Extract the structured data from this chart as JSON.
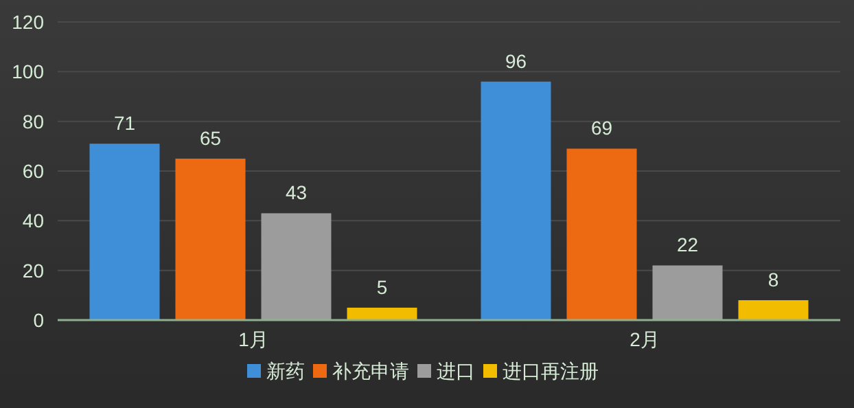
{
  "chart_data": {
    "type": "bar",
    "categories": [
      "1月",
      "2月"
    ],
    "series": [
      {
        "name": "新药",
        "color": "#3f8fd8",
        "values": [
          71,
          96
        ]
      },
      {
        "name": "补充申请",
        "color": "#ee6a12",
        "values": [
          65,
          69
        ]
      },
      {
        "name": "进口",
        "color": "#9c9c9c",
        "values": [
          43,
          22
        ]
      },
      {
        "name": "进口再注册",
        "color": "#f2bd00",
        "values": [
          5,
          8
        ]
      }
    ],
    "ylim": [
      0,
      120
    ],
    "yticks": [
      0,
      20,
      40,
      60,
      80,
      100,
      120
    ],
    "grid": "y",
    "legend": "bottom",
    "data_labels": true
  }
}
